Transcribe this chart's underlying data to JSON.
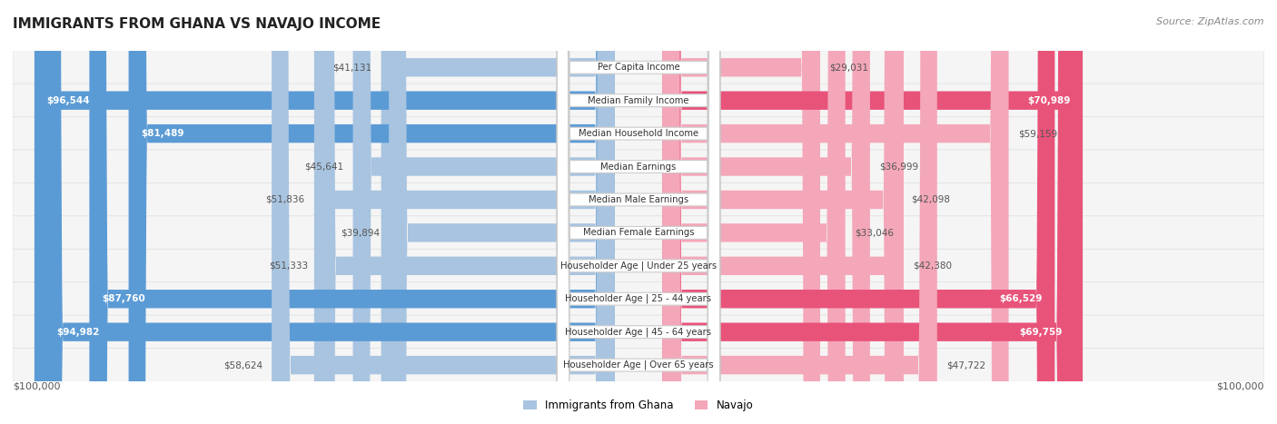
{
  "title": "IMMIGRANTS FROM GHANA VS NAVAJO INCOME",
  "source": "Source: ZipAtlas.com",
  "categories": [
    "Per Capita Income",
    "Median Family Income",
    "Median Household Income",
    "Median Earnings",
    "Median Male Earnings",
    "Median Female Earnings",
    "Householder Age | Under 25 years",
    "Householder Age | 25 - 44 years",
    "Householder Age | 45 - 64 years",
    "Householder Age | Over 65 years"
  ],
  "ghana_values": [
    41131,
    96544,
    81489,
    45641,
    51836,
    39894,
    51333,
    87760,
    94982,
    58624
  ],
  "navajo_values": [
    29031,
    70989,
    59159,
    36999,
    42098,
    33046,
    42380,
    66529,
    69759,
    47722
  ],
  "ghana_labels": [
    "$41,131",
    "$96,544",
    "$81,489",
    "$45,641",
    "$51,836",
    "$39,894",
    "$51,333",
    "$87,760",
    "$94,982",
    "$58,624"
  ],
  "navajo_labels": [
    "$29,031",
    "$70,989",
    "$59,159",
    "$36,999",
    "$42,098",
    "$33,046",
    "$42,380",
    "$66,529",
    "$69,759",
    "$47,722"
  ],
  "ghana_color_light": "#a8c4e0",
  "ghana_color_dark": "#5b9bd5",
  "navajo_color_light": "#f4a7b9",
  "navajo_color_dark": "#e8537a",
  "max_value": 100000,
  "background_color": "#ffffff",
  "row_bg_color": "#f0f0f0",
  "legend_ghana": "Immigrants from Ghana",
  "legend_navajo": "Navajo",
  "xlabel_left": "$100,000",
  "xlabel_right": "$100,000",
  "ghana_large_threshold": 70000,
  "navajo_large_threshold": 60000
}
